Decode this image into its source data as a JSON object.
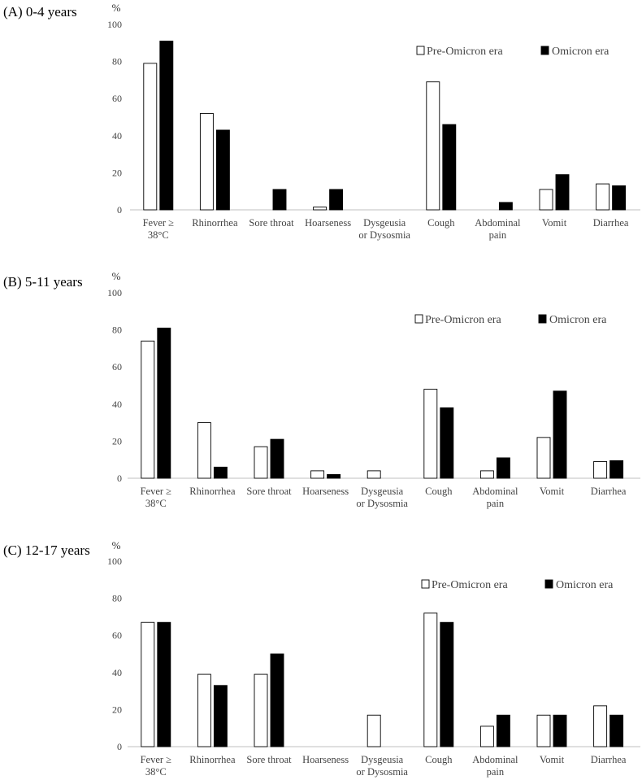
{
  "chart_data": [
    {
      "type": "bar",
      "title": "(A) 0-4 years",
      "ylabel": "%",
      "ylim": [
        0,
        100
      ],
      "yticks": [
        "0",
        "20",
        "40",
        "60",
        "80",
        "100"
      ],
      "categories": [
        [
          "Fever ≥",
          "38°C"
        ],
        [
          "Rhinorrhea"
        ],
        [
          "Sore throat"
        ],
        [
          "Hoarseness"
        ],
        [
          "Dysgeusia",
          "or Dysosmia"
        ],
        [
          "Cough"
        ],
        [
          "Abdominal",
          "pain"
        ],
        [
          "Vomit"
        ],
        [
          "Diarrhea"
        ]
      ],
      "series": [
        {
          "name": "Pre-Omicron era",
          "color": "#ffffff",
          "values": [
            79,
            52,
            0,
            1.5,
            0,
            69,
            0,
            11,
            14
          ]
        },
        {
          "name": "Omicron era",
          "color": "#000000",
          "values": [
            91,
            43,
            11,
            11,
            0,
            46,
            4,
            19,
            13
          ]
        }
      ],
      "legend": "top-right",
      "grid": false
    },
    {
      "type": "bar",
      "title": "(B) 5-11 years",
      "ylabel": "%",
      "ylim": [
        0,
        100
      ],
      "yticks": [
        "0",
        "20",
        "40",
        "60",
        "80",
        "100"
      ],
      "categories": [
        [
          "Fever ≥",
          "38°C"
        ],
        [
          "Rhinorrhea"
        ],
        [
          "Sore throat"
        ],
        [
          "Hoarseness"
        ],
        [
          "Dysgeusia",
          "or Dysosmia"
        ],
        [
          "Cough"
        ],
        [
          "Abdominal",
          "pain"
        ],
        [
          "Vomit"
        ],
        [
          "Diarrhea"
        ]
      ],
      "series": [
        {
          "name": "Pre-Omicron era",
          "color": "#ffffff",
          "values": [
            74,
            30,
            17,
            4,
            4,
            48,
            4,
            22,
            9
          ]
        },
        {
          "name": "Omicron era",
          "color": "#000000",
          "values": [
            81,
            6,
            21,
            2,
            0,
            38,
            11,
            47,
            9.5
          ]
        }
      ],
      "legend": "top-right",
      "grid": false
    },
    {
      "type": "bar",
      "title": "(C) 12-17 years",
      "ylabel": "%",
      "ylim": [
        0,
        100
      ],
      "yticks": [
        "0",
        "20",
        "40",
        "60",
        "80",
        "100"
      ],
      "categories": [
        [
          "Fever ≥",
          "38°C"
        ],
        [
          "Rhinorrhea"
        ],
        [
          "Sore throat"
        ],
        [
          "Hoarseness"
        ],
        [
          "Dysgeusia",
          "or Dysosmia"
        ],
        [
          "Cough"
        ],
        [
          "Abdominal",
          "pain"
        ],
        [
          "Vomit"
        ],
        [
          "Diarrhea"
        ]
      ],
      "series": [
        {
          "name": "Pre-Omicron era",
          "color": "#ffffff",
          "values": [
            67,
            39,
            39,
            0,
            17,
            72,
            11,
            17,
            22
          ]
        },
        {
          "name": "Omicron era",
          "color": "#000000",
          "values": [
            67,
            33,
            50,
            0,
            0,
            67,
            17,
            17,
            17
          ]
        }
      ],
      "legend": "top-right",
      "grid": false
    }
  ]
}
